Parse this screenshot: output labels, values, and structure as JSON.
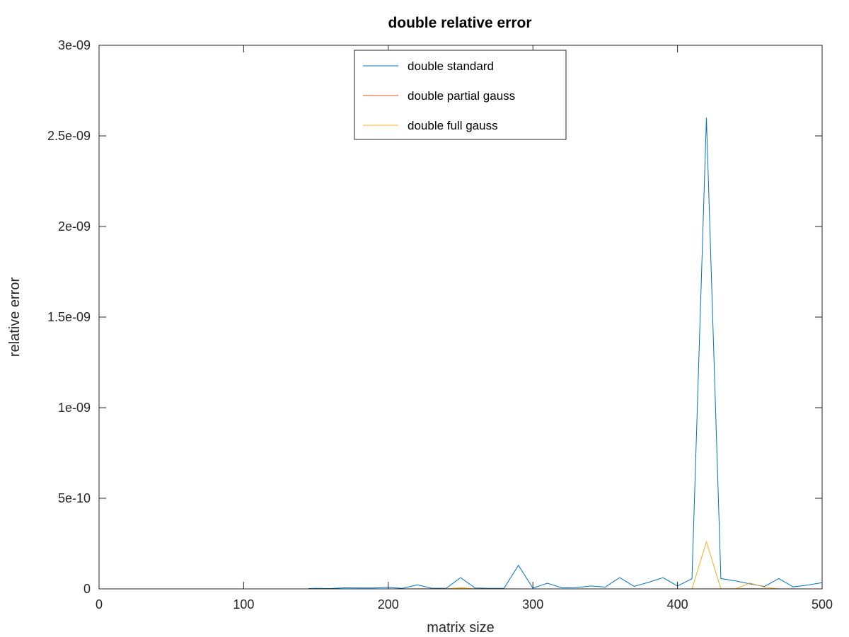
{
  "chart_data": {
    "type": "line",
    "title": "double relative error",
    "xlabel": "matrix size",
    "ylabel": "relative error",
    "xlim": [
      0,
      500
    ],
    "ylim": [
      0,
      3e-09
    ],
    "x_ticks": [
      0,
      100,
      200,
      300,
      400,
      500
    ],
    "x_tick_labels": [
      "0",
      "100",
      "200",
      "300",
      "400",
      "500"
    ],
    "y_ticks": [
      0,
      5e-10,
      1e-09,
      1.5e-09,
      2e-09,
      2.5e-09,
      3e-09
    ],
    "y_tick_labels": [
      "0",
      "5e-10",
      "1e-09",
      "1.5e-09",
      "2e-09",
      "2.5e-09",
      "3e-09"
    ],
    "grid": false,
    "legend_placement": "top-center",
    "series": [
      {
        "name": "double standard",
        "color": "#0072bd",
        "points": [
          [
            145,
            2e-12
          ],
          [
            150,
            3e-12
          ],
          [
            160,
            2e-12
          ],
          [
            170,
            6e-12
          ],
          [
            180,
            5e-12
          ],
          [
            190,
            5e-12
          ],
          [
            200,
            8e-12
          ],
          [
            210,
            3e-12
          ],
          [
            220,
            2.2e-11
          ],
          [
            230,
            4e-12
          ],
          [
            240,
            3e-12
          ],
          [
            250,
            6.2e-11
          ],
          [
            260,
            5e-12
          ],
          [
            270,
            3e-12
          ],
          [
            280,
            3e-12
          ],
          [
            290,
            1.3e-10
          ],
          [
            300,
            4e-12
          ],
          [
            310,
            3.1e-11
          ],
          [
            320,
            6e-12
          ],
          [
            330,
            7e-12
          ],
          [
            340,
            1.6e-11
          ],
          [
            350,
            1e-11
          ],
          [
            360,
            6.2e-11
          ],
          [
            370,
            1.4e-11
          ],
          [
            380,
            3.6e-11
          ],
          [
            390,
            6.2e-11
          ],
          [
            400,
            1.6e-11
          ],
          [
            410,
            5.6e-11
          ],
          [
            420,
            2.6e-09
          ],
          [
            430,
            5.7e-11
          ],
          [
            440,
            4.4e-11
          ],
          [
            450,
            2.8e-11
          ],
          [
            460,
            1.3e-11
          ],
          [
            470,
            5.7e-11
          ],
          [
            480,
            1.1e-11
          ],
          [
            490,
            2.1e-11
          ],
          [
            500,
            3.4e-11
          ]
        ]
      },
      {
        "name": "double partial gauss",
        "color": "#d95319",
        "points": [
          [
            145,
            0
          ],
          [
            200,
            0
          ],
          [
            250,
            1e-12
          ],
          [
            300,
            0
          ],
          [
            350,
            0
          ],
          [
            400,
            0
          ],
          [
            450,
            1e-12
          ],
          [
            500,
            0
          ]
        ]
      },
      {
        "name": "double full gauss",
        "color": "#edb120",
        "points": [
          [
            240,
            0
          ],
          [
            250,
            7e-12
          ],
          [
            260,
            0
          ],
          [
            410,
            0
          ],
          [
            420,
            2.6e-10
          ],
          [
            430,
            0
          ],
          [
            440,
            0
          ],
          [
            450,
            3.2e-11
          ],
          [
            460,
            1e-11
          ],
          [
            470,
            0
          ]
        ]
      }
    ]
  }
}
